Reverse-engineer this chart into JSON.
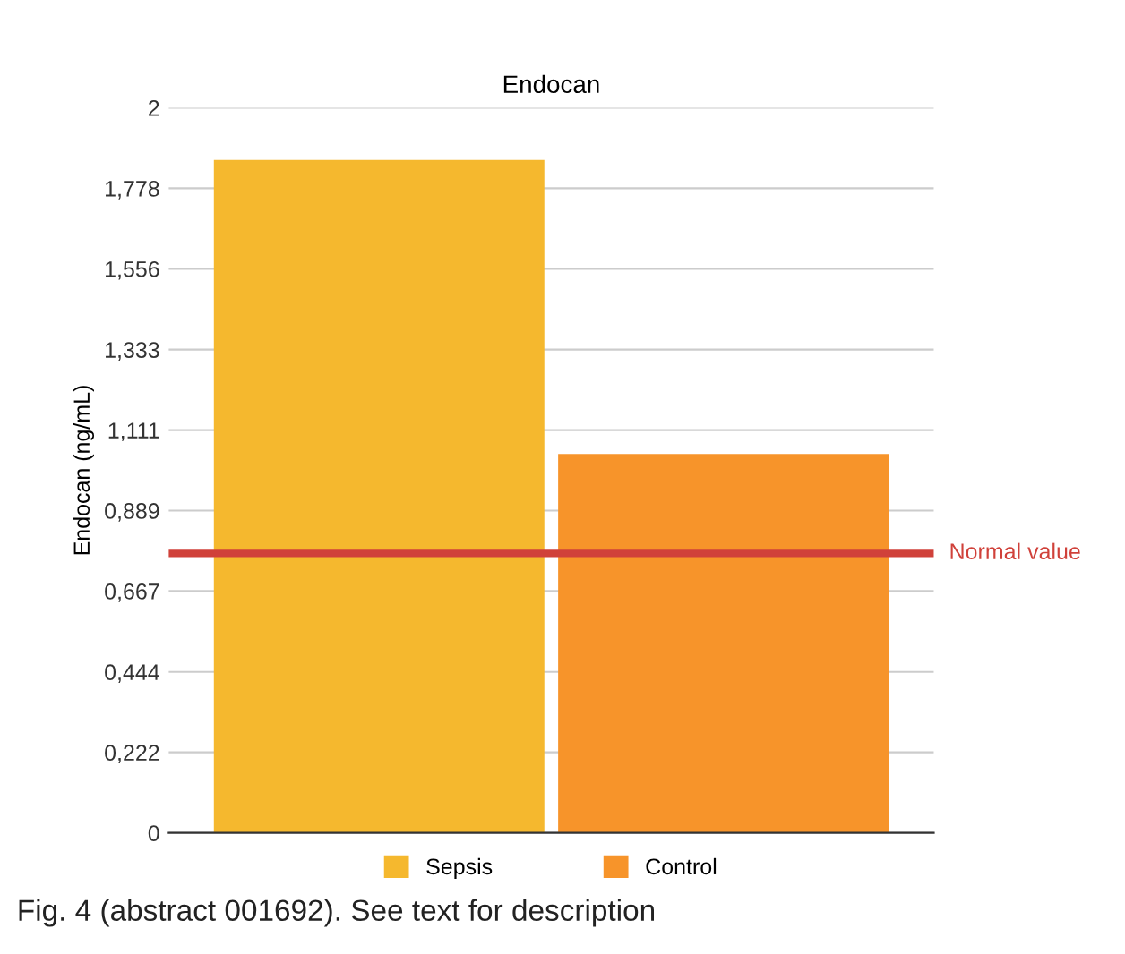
{
  "chart_data": {
    "type": "bar",
    "title": "Endocan",
    "ylabel": "Endocan (ng/mL)",
    "categories": [
      null
    ],
    "series": [
      {
        "name": "Sepsis",
        "color": "#f5b82e",
        "values": [
          1.856
        ]
      },
      {
        "name": "Control",
        "color": "#f7942a",
        "values": [
          1.045
        ]
      }
    ],
    "ylim": [
      0,
      2
    ],
    "yticks": [
      0,
      {
        "value": 0.222,
        "label": "0,222"
      },
      {
        "value": 0.444,
        "label": "0,444"
      },
      {
        "value": 0.667,
        "label": "0,667"
      },
      {
        "value": 0.889,
        "label": "0,889"
      },
      {
        "value": 1.111,
        "label": "1,111"
      },
      {
        "value": 1.333,
        "label": "1,333"
      },
      {
        "value": 1.556,
        "label": "1,556"
      },
      {
        "value": 1.778,
        "label": "1,778"
      },
      2
    ],
    "grid": "y",
    "legend": "bottom",
    "ref_lines": [
      {
        "axis": "y",
        "value": 0.771,
        "label": "Normal value",
        "color": "#d0413a"
      }
    ],
    "annotations": [
      "Fig. 4 (abstract 001692). See text for description"
    ]
  }
}
